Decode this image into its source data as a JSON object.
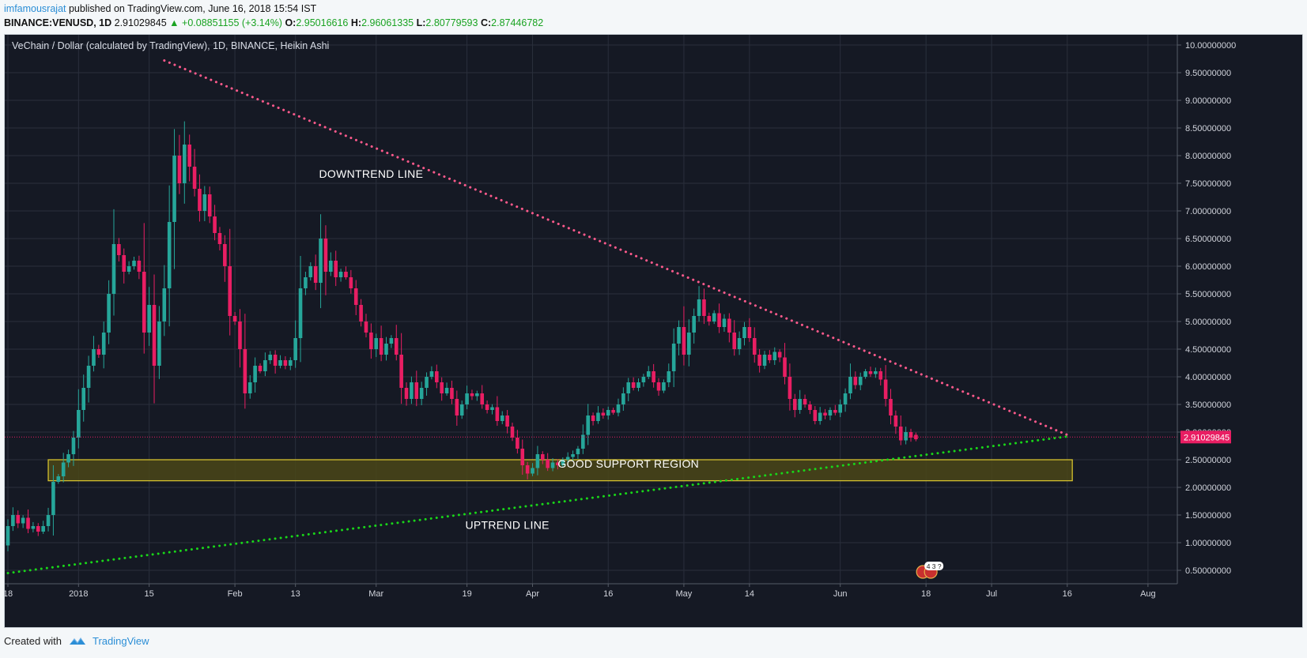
{
  "header": {
    "author": "imfamousrajat",
    "published_text": "published on TradingView.com, June 16, 2018 15:54 IST",
    "symbol": "BINANCE:VENUSD, 1D",
    "last": "2.91029845",
    "change_arrow": "▲",
    "change": "+0.08851155 (+3.14%)",
    "o_label": "O:",
    "o_value": "2.95016616",
    "h_label": "H:",
    "h_value": "2.96061335",
    "l_label": "L:",
    "l_value": "2.80779593",
    "c_label": "C:",
    "c_value": "2.87446782"
  },
  "footer": {
    "created_with": "Created with",
    "brand": "TradingView"
  },
  "colors": {
    "background": "#151924",
    "grid": "#2a2f3c",
    "up": "#26a69a",
    "down": "#e91e63",
    "downtrend": "#ff5a8c",
    "uptrend": "#19d619",
    "support_fill": "#4a4718",
    "support_border": "#d4c02e",
    "price_tag": "#e91e63",
    "axis_text": "#d1d4dc"
  },
  "chart_data": {
    "type": "candlestick",
    "style": "Heikin Ashi",
    "title": "VeChain / Dollar (calculated by TradingView), 1D, BINANCE, Heikin Ashi",
    "y_ticks": [
      "0.50000000",
      "1.00000000",
      "1.50000000",
      "2.00000000",
      "2.50000000",
      "3.00000000",
      "3.50000000",
      "4.00000000",
      "4.50000000",
      "5.00000000",
      "5.50000000",
      "6.00000000",
      "6.50000000",
      "7.00000000",
      "7.50000000",
      "8.00000000",
      "8.50000000",
      "9.00000000",
      "9.50000000",
      "10.00000000"
    ],
    "x_ticks": [
      {
        "label": "18",
        "date": "2017-12-18"
      },
      {
        "label": "2018",
        "date": "2018-01-01"
      },
      {
        "label": "15",
        "date": "2018-01-15"
      },
      {
        "label": "Feb",
        "date": "2018-02-01"
      },
      {
        "label": "13",
        "date": "2018-02-13"
      },
      {
        "label": "Mar",
        "date": "2018-03-01"
      },
      {
        "label": "19",
        "date": "2018-03-19"
      },
      {
        "label": "Apr",
        "date": "2018-04-01"
      },
      {
        "label": "16",
        "date": "2018-04-16"
      },
      {
        "label": "May",
        "date": "2018-05-01"
      },
      {
        "label": "14",
        "date": "2018-05-14"
      },
      {
        "label": "Jun",
        "date": "2018-06-01"
      },
      {
        "label": "18",
        "date": "2018-06-18"
      },
      {
        "label": "Jul",
        "date": "2018-07-01"
      },
      {
        "label": "16",
        "date": "2018-07-16"
      },
      {
        "label": "Aug",
        "date": "2018-08-01"
      }
    ],
    "last_price_label": "2.91029845",
    "last_price": 2.91,
    "events_badge": "4 3 ?",
    "candles": [
      {
        "date": "2017-12-18",
        "o": 0.95,
        "c": 1.3
      },
      {
        "date": "2017-12-19",
        "o": 1.3,
        "c": 1.5
      },
      {
        "date": "2017-12-20",
        "o": 1.5,
        "c": 1.35
      },
      {
        "date": "2017-12-21",
        "o": 1.35,
        "c": 1.45
      },
      {
        "date": "2017-12-22",
        "o": 1.45,
        "c": 1.25
      },
      {
        "date": "2017-12-23",
        "o": 1.25,
        "c": 1.3
      },
      {
        "date": "2017-12-24",
        "o": 1.3,
        "c": 1.2
      },
      {
        "date": "2017-12-25",
        "o": 1.2,
        "c": 1.3
      },
      {
        "date": "2017-12-26",
        "o": 1.3,
        "c": 1.5
      },
      {
        "date": "2017-12-27",
        "o": 1.5,
        "c": 2.1
      },
      {
        "date": "2017-12-28",
        "o": 2.1,
        "c": 2.2
      },
      {
        "date": "2017-12-29",
        "o": 2.2,
        "c": 2.45
      },
      {
        "date": "2017-12-30",
        "o": 2.45,
        "c": 2.6
      },
      {
        "date": "2017-12-31",
        "o": 2.6,
        "c": 2.9
      },
      {
        "date": "2018-01-01",
        "o": 2.9,
        "c": 3.4
      },
      {
        "date": "2018-01-02",
        "o": 3.4,
        "c": 3.8
      },
      {
        "date": "2018-01-03",
        "o": 3.8,
        "c": 4.2
      },
      {
        "date": "2018-01-04",
        "o": 4.2,
        "c": 4.5
      },
      {
        "date": "2018-01-05",
        "o": 4.5,
        "c": 4.4
      },
      {
        "date": "2018-01-06",
        "o": 4.4,
        "c": 4.8
      },
      {
        "date": "2018-01-07",
        "o": 4.8,
        "c": 5.5
      },
      {
        "date": "2018-01-08",
        "o": 5.5,
        "c": 6.4
      },
      {
        "date": "2018-01-09",
        "o": 6.4,
        "c": 6.2
      },
      {
        "date": "2018-01-10",
        "o": 6.2,
        "c": 5.9
      },
      {
        "date": "2018-01-11",
        "o": 5.9,
        "c": 6.0
      },
      {
        "date": "2018-01-12",
        "o": 6.0,
        "c": 6.1
      },
      {
        "date": "2018-01-13",
        "o": 6.1,
        "c": 5.9
      },
      {
        "date": "2018-01-14",
        "o": 5.9,
        "c": 4.8
      },
      {
        "date": "2018-01-15",
        "o": 4.8,
        "c": 5.3
      },
      {
        "date": "2018-01-16",
        "o": 5.3,
        "c": 4.2
      },
      {
        "date": "2018-01-17",
        "o": 4.2,
        "c": 5.0
      },
      {
        "date": "2018-01-18",
        "o": 5.0,
        "c": 5.6
      },
      {
        "date": "2018-01-19",
        "o": 5.6,
        "c": 6.8
      },
      {
        "date": "2018-01-20",
        "o": 6.8,
        "c": 8.0
      },
      {
        "date": "2018-01-21",
        "o": 8.0,
        "c": 7.5
      },
      {
        "date": "2018-01-22",
        "o": 7.5,
        "c": 8.2
      },
      {
        "date": "2018-01-23",
        "o": 8.2,
        "c": 7.8
      },
      {
        "date": "2018-01-24",
        "o": 7.8,
        "c": 7.4
      },
      {
        "date": "2018-01-25",
        "o": 7.4,
        "c": 7.0
      },
      {
        "date": "2018-01-26",
        "o": 7.0,
        "c": 7.3
      },
      {
        "date": "2018-01-27",
        "o": 7.3,
        "c": 6.9
      },
      {
        "date": "2018-01-28",
        "o": 6.9,
        "c": 6.6
      },
      {
        "date": "2018-01-29",
        "o": 6.6,
        "c": 6.4
      },
      {
        "date": "2018-01-30",
        "o": 6.4,
        "c": 6.0
      },
      {
        "date": "2018-01-31",
        "o": 6.0,
        "c": 5.1
      },
      {
        "date": "2018-02-01",
        "o": 5.1,
        "c": 5.0
      },
      {
        "date": "2018-02-02",
        "o": 5.0,
        "c": 4.5
      },
      {
        "date": "2018-02-03",
        "o": 4.5,
        "c": 3.7
      },
      {
        "date": "2018-02-04",
        "o": 3.7,
        "c": 3.9
      },
      {
        "date": "2018-02-05",
        "o": 3.9,
        "c": 4.2
      },
      {
        "date": "2018-02-06",
        "o": 4.2,
        "c": 4.1
      },
      {
        "date": "2018-02-07",
        "o": 4.1,
        "c": 4.3
      },
      {
        "date": "2018-02-08",
        "o": 4.3,
        "c": 4.4
      },
      {
        "date": "2018-02-09",
        "o": 4.4,
        "c": 4.2
      },
      {
        "date": "2018-02-10",
        "o": 4.2,
        "c": 4.3
      },
      {
        "date": "2018-02-11",
        "o": 4.3,
        "c": 4.2
      },
      {
        "date": "2018-02-12",
        "o": 4.2,
        "c": 4.3
      },
      {
        "date": "2018-02-13",
        "o": 4.3,
        "c": 4.7
      },
      {
        "date": "2018-02-14",
        "o": 4.7,
        "c": 5.6
      },
      {
        "date": "2018-02-15",
        "o": 5.6,
        "c": 5.8
      },
      {
        "date": "2018-02-16",
        "o": 5.8,
        "c": 6.0
      },
      {
        "date": "2018-02-17",
        "o": 6.0,
        "c": 5.7
      },
      {
        "date": "2018-02-18",
        "o": 5.7,
        "c": 6.5
      },
      {
        "date": "2018-02-19",
        "o": 6.5,
        "c": 5.9
      },
      {
        "date": "2018-02-20",
        "o": 5.9,
        "c": 6.1
      },
      {
        "date": "2018-02-21",
        "o": 6.1,
        "c": 5.8
      },
      {
        "date": "2018-02-22",
        "o": 5.8,
        "c": 5.9
      },
      {
        "date": "2018-02-23",
        "o": 5.9,
        "c": 5.8
      },
      {
        "date": "2018-02-24",
        "o": 5.8,
        "c": 5.6
      },
      {
        "date": "2018-02-25",
        "o": 5.6,
        "c": 5.3
      },
      {
        "date": "2018-02-26",
        "o": 5.3,
        "c": 5.0
      },
      {
        "date": "2018-02-27",
        "o": 5.0,
        "c": 4.8
      },
      {
        "date": "2018-02-28",
        "o": 4.8,
        "c": 4.5
      },
      {
        "date": "2018-03-01",
        "o": 4.5,
        "c": 4.7
      },
      {
        "date": "2018-03-02",
        "o": 4.7,
        "c": 4.4
      },
      {
        "date": "2018-03-03",
        "o": 4.4,
        "c": 4.6
      },
      {
        "date": "2018-03-04",
        "o": 4.6,
        "c": 4.7
      },
      {
        "date": "2018-03-05",
        "o": 4.7,
        "c": 4.4
      },
      {
        "date": "2018-03-06",
        "o": 4.4,
        "c": 3.8
      },
      {
        "date": "2018-03-07",
        "o": 3.8,
        "c": 3.6
      },
      {
        "date": "2018-03-08",
        "o": 3.6,
        "c": 3.9
      },
      {
        "date": "2018-03-09",
        "o": 3.9,
        "c": 3.6
      },
      {
        "date": "2018-03-10",
        "o": 3.6,
        "c": 3.8
      },
      {
        "date": "2018-03-11",
        "o": 3.8,
        "c": 4.0
      },
      {
        "date": "2018-03-12",
        "o": 4.0,
        "c": 4.1
      },
      {
        "date": "2018-03-13",
        "o": 4.1,
        "c": 3.9
      },
      {
        "date": "2018-03-14",
        "o": 3.9,
        "c": 3.7
      },
      {
        "date": "2018-03-15",
        "o": 3.7,
        "c": 3.8
      },
      {
        "date": "2018-03-16",
        "o": 3.8,
        "c": 3.6
      },
      {
        "date": "2018-03-17",
        "o": 3.6,
        "c": 3.3
      },
      {
        "date": "2018-03-18",
        "o": 3.3,
        "c": 3.5
      },
      {
        "date": "2018-03-19",
        "o": 3.5,
        "c": 3.7
      },
      {
        "date": "2018-03-20",
        "o": 3.7,
        "c": 3.65
      },
      {
        "date": "2018-03-21",
        "o": 3.65,
        "c": 3.7
      },
      {
        "date": "2018-03-22",
        "o": 3.7,
        "c": 3.5
      },
      {
        "date": "2018-03-23",
        "o": 3.5,
        "c": 3.4
      },
      {
        "date": "2018-03-24",
        "o": 3.4,
        "c": 3.45
      },
      {
        "date": "2018-03-25",
        "o": 3.45,
        "c": 3.2
      },
      {
        "date": "2018-03-26",
        "o": 3.2,
        "c": 3.3
      },
      {
        "date": "2018-03-27",
        "o": 3.3,
        "c": 3.1
      },
      {
        "date": "2018-03-28",
        "o": 3.1,
        "c": 2.9
      },
      {
        "date": "2018-03-29",
        "o": 2.9,
        "c": 2.7
      },
      {
        "date": "2018-03-30",
        "o": 2.7,
        "c": 2.4
      },
      {
        "date": "2018-03-31",
        "o": 2.4,
        "c": 2.25
      },
      {
        "date": "2018-04-01",
        "o": 2.25,
        "c": 2.35
      },
      {
        "date": "2018-04-02",
        "o": 2.35,
        "c": 2.6
      },
      {
        "date": "2018-04-03",
        "o": 2.6,
        "c": 2.5
      },
      {
        "date": "2018-04-04",
        "o": 2.5,
        "c": 2.35
      },
      {
        "date": "2018-04-05",
        "o": 2.35,
        "c": 2.45
      },
      {
        "date": "2018-04-06",
        "o": 2.45,
        "c": 2.4
      },
      {
        "date": "2018-04-07",
        "o": 2.4,
        "c": 2.5
      },
      {
        "date": "2018-04-08",
        "o": 2.5,
        "c": 2.55
      },
      {
        "date": "2018-04-09",
        "o": 2.55,
        "c": 2.6
      },
      {
        "date": "2018-04-10",
        "o": 2.6,
        "c": 2.7
      },
      {
        "date": "2018-04-11",
        "o": 2.7,
        "c": 2.95
      },
      {
        "date": "2018-04-12",
        "o": 2.95,
        "c": 3.3
      },
      {
        "date": "2018-04-13",
        "o": 3.3,
        "c": 3.2
      },
      {
        "date": "2018-04-14",
        "o": 3.2,
        "c": 3.35
      },
      {
        "date": "2018-04-15",
        "o": 3.35,
        "c": 3.3
      },
      {
        "date": "2018-04-16",
        "o": 3.3,
        "c": 3.4
      },
      {
        "date": "2018-04-17",
        "o": 3.4,
        "c": 3.35
      },
      {
        "date": "2018-04-18",
        "o": 3.35,
        "c": 3.5
      },
      {
        "date": "2018-04-19",
        "o": 3.5,
        "c": 3.7
      },
      {
        "date": "2018-04-20",
        "o": 3.7,
        "c": 3.9
      },
      {
        "date": "2018-04-21",
        "o": 3.9,
        "c": 3.8
      },
      {
        "date": "2018-04-22",
        "o": 3.8,
        "c": 3.9
      },
      {
        "date": "2018-04-23",
        "o": 3.9,
        "c": 4.0
      },
      {
        "date": "2018-04-24",
        "o": 4.0,
        "c": 4.1
      },
      {
        "date": "2018-04-25",
        "o": 4.1,
        "c": 3.9
      },
      {
        "date": "2018-04-26",
        "o": 3.9,
        "c": 3.75
      },
      {
        "date": "2018-04-27",
        "o": 3.75,
        "c": 3.9
      },
      {
        "date": "2018-04-28",
        "o": 3.9,
        "c": 4.1
      },
      {
        "date": "2018-04-29",
        "o": 4.1,
        "c": 4.6
      },
      {
        "date": "2018-04-30",
        "o": 4.6,
        "c": 4.9
      },
      {
        "date": "2018-05-01",
        "o": 4.9,
        "c": 4.4
      },
      {
        "date": "2018-05-02",
        "o": 4.4,
        "c": 4.8
      },
      {
        "date": "2018-05-03",
        "o": 4.8,
        "c": 5.1
      },
      {
        "date": "2018-05-04",
        "o": 5.1,
        "c": 5.4
      },
      {
        "date": "2018-05-05",
        "o": 5.4,
        "c": 5.1
      },
      {
        "date": "2018-05-06",
        "o": 5.1,
        "c": 5.0
      },
      {
        "date": "2018-05-07",
        "o": 5.0,
        "c": 5.15
      },
      {
        "date": "2018-05-08",
        "o": 5.15,
        "c": 4.9
      },
      {
        "date": "2018-05-09",
        "o": 4.9,
        "c": 5.05
      },
      {
        "date": "2018-05-10",
        "o": 5.05,
        "c": 4.8
      },
      {
        "date": "2018-05-11",
        "o": 4.8,
        "c": 4.5
      },
      {
        "date": "2018-05-12",
        "o": 4.5,
        "c": 4.7
      },
      {
        "date": "2018-05-13",
        "o": 4.7,
        "c": 4.9
      },
      {
        "date": "2018-05-14",
        "o": 4.9,
        "c": 4.7
      },
      {
        "date": "2018-05-15",
        "o": 4.7,
        "c": 4.4
      },
      {
        "date": "2018-05-16",
        "o": 4.4,
        "c": 4.2
      },
      {
        "date": "2018-05-17",
        "o": 4.2,
        "c": 4.4
      },
      {
        "date": "2018-05-18",
        "o": 4.4,
        "c": 4.3
      },
      {
        "date": "2018-05-19",
        "o": 4.3,
        "c": 4.45
      },
      {
        "date": "2018-05-20",
        "o": 4.45,
        "c": 4.35
      },
      {
        "date": "2018-05-21",
        "o": 4.35,
        "c": 4.0
      },
      {
        "date": "2018-05-22",
        "o": 4.0,
        "c": 3.6
      },
      {
        "date": "2018-05-23",
        "o": 3.6,
        "c": 3.4
      },
      {
        "date": "2018-05-24",
        "o": 3.4,
        "c": 3.6
      },
      {
        "date": "2018-05-25",
        "o": 3.6,
        "c": 3.5
      },
      {
        "date": "2018-05-26",
        "o": 3.5,
        "c": 3.4
      },
      {
        "date": "2018-05-27",
        "o": 3.4,
        "c": 3.2
      },
      {
        "date": "2018-05-28",
        "o": 3.2,
        "c": 3.35
      },
      {
        "date": "2018-05-29",
        "o": 3.35,
        "c": 3.3
      },
      {
        "date": "2018-05-30",
        "o": 3.3,
        "c": 3.4
      },
      {
        "date": "2018-05-31",
        "o": 3.4,
        "c": 3.35
      },
      {
        "date": "2018-06-01",
        "o": 3.35,
        "c": 3.5
      },
      {
        "date": "2018-06-02",
        "o": 3.5,
        "c": 3.7
      },
      {
        "date": "2018-06-03",
        "o": 3.7,
        "c": 4.0
      },
      {
        "date": "2018-06-04",
        "o": 4.0,
        "c": 3.85
      },
      {
        "date": "2018-06-05",
        "o": 3.85,
        "c": 4.0
      },
      {
        "date": "2018-06-06",
        "o": 4.0,
        "c": 4.1
      },
      {
        "date": "2018-06-07",
        "o": 4.1,
        "c": 4.05
      },
      {
        "date": "2018-06-08",
        "o": 4.05,
        "c": 4.1
      },
      {
        "date": "2018-06-09",
        "o": 4.1,
        "c": 3.95
      },
      {
        "date": "2018-06-10",
        "o": 3.95,
        "c": 3.6
      },
      {
        "date": "2018-06-11",
        "o": 3.6,
        "c": 3.3
      },
      {
        "date": "2018-06-12",
        "o": 3.3,
        "c": 3.1
      },
      {
        "date": "2018-06-13",
        "o": 3.1,
        "c": 2.85
      },
      {
        "date": "2018-06-14",
        "o": 2.85,
        "c": 3.0
      },
      {
        "date": "2018-06-15",
        "o": 3.0,
        "c": 2.9
      },
      {
        "date": "2018-06-16",
        "o": 2.95,
        "c": 2.87
      }
    ],
    "annotations": [
      {
        "label": "DOWNTREND LINE",
        "date": "2018-02-28",
        "price": 7.6
      },
      {
        "label": "GOOD SUPPORT REGION",
        "date": "2018-04-20",
        "price": 2.36
      },
      {
        "label": "UPTREND LINE",
        "date": "2018-03-27",
        "price": 1.25
      }
    ],
    "trendlines": [
      {
        "name": "downtrend",
        "from": {
          "date": "2018-01-18",
          "price": 9.72
        },
        "to": {
          "date": "2018-07-16",
          "price": 2.95
        }
      },
      {
        "name": "uptrend",
        "from": {
          "date": "2017-12-18",
          "price": 0.45
        },
        "to": {
          "date": "2018-07-16",
          "price": 2.92
        }
      }
    ],
    "support_zone": {
      "from": "2017-12-26",
      "to": "2018-07-17",
      "low": 2.12,
      "high": 2.5
    }
  }
}
